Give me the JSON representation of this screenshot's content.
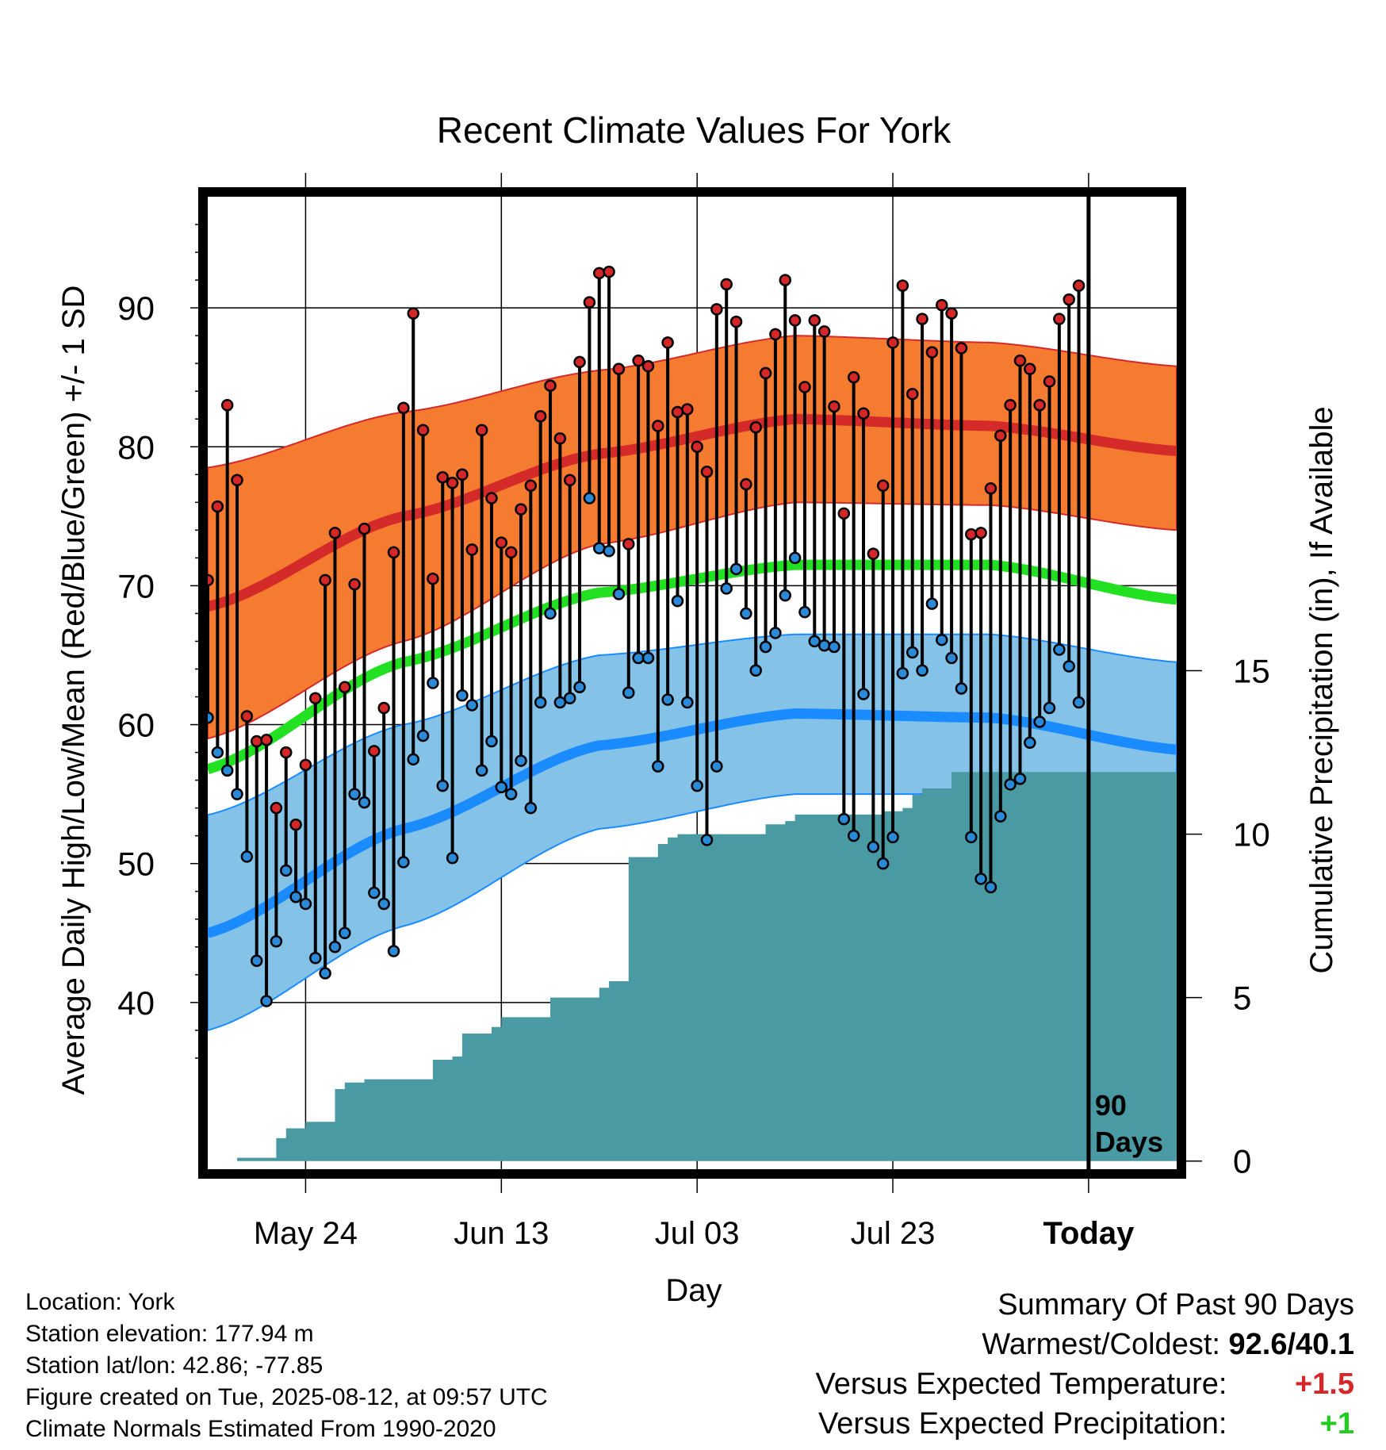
{
  "colors": {
    "high_band": "#f47b30",
    "high_mean": "#d42a2a",
    "low_band": "#85c2e8",
    "low_mean": "#1a8cff",
    "mean": "#22e022",
    "precip": "#4a9aa4",
    "high_dot": "#d62728",
    "low_dot": "#2b8ad8",
    "warm_cold_value": "#000000",
    "temp_anomaly": "#d62728",
    "precip_anomaly": "#22cc22"
  },
  "chart_data": {
    "type": "line",
    "title": "Recent Climate Values For York",
    "xlabel": "Day",
    "ylabel": "Average Daily High/Low/Mean (Red/Blue/Green) +/- 1 SD",
    "y2label": "Cumulative Precipitation (in), If Available",
    "xlim": [
      "2025-05-14",
      "2025-08-21"
    ],
    "ylim": [
      28,
      98
    ],
    "y2lim": [
      -0.25,
      29.5
    ],
    "y_ticks": [
      40,
      50,
      60,
      70,
      80,
      90
    ],
    "y2_ticks": [
      0,
      5,
      10,
      15
    ],
    "x_ticks": [
      {
        "date": "2025-05-24",
        "label": "May 24"
      },
      {
        "date": "2025-06-13",
        "label": "Jun 13"
      },
      {
        "date": "2025-07-03",
        "label": "Jul 03"
      },
      {
        "date": "2025-07-23",
        "label": "Jul 23"
      },
      {
        "date": "2025-08-12",
        "label": "Today"
      }
    ],
    "today": "2025-08-12",
    "today_label": [
      "90",
      "Days"
    ],
    "grid": true,
    "normals_dates": [
      "2025-05-14",
      "2025-06-03",
      "2025-06-23",
      "2025-07-13",
      "2025-08-02",
      "2025-08-21"
    ],
    "normal_high_mean": [
      68.5,
      75.0,
      79.5,
      82.0,
      81.5,
      79.7
    ],
    "normal_high_upper": [
      78.5,
      82.5,
      85.5,
      88.0,
      87.5,
      85.8
    ],
    "normal_high_lower": [
      59.0,
      66.0,
      73.0,
      76.0,
      75.8,
      74.0
    ],
    "normal_mean": [
      56.8,
      64.5,
      69.5,
      71.5,
      71.5,
      69.0
    ],
    "normal_low_mean": [
      45.0,
      52.5,
      58.5,
      60.8,
      60.5,
      58.2
    ],
    "normal_low_upper": [
      53.5,
      60.0,
      65.0,
      66.5,
      66.5,
      64.5
    ],
    "normal_low_lower": [
      38.0,
      45.5,
      52.5,
      55.0,
      55.0,
      52.5
    ],
    "series": [
      {
        "name": "High",
        "start": "2025-05-14",
        "values": [
          70.4,
          75.7,
          83.0,
          77.6,
          60.6,
          58.8,
          58.9,
          54.0,
          58.0,
          52.8,
          57.1,
          61.9,
          70.4,
          73.8,
          62.7,
          70.1,
          74.1,
          58.1,
          61.2,
          72.4,
          82.8,
          89.6,
          81.2,
          70.5,
          77.8,
          77.4,
          78.0,
          72.6,
          81.2,
          76.3,
          73.1,
          72.4,
          75.5,
          77.2,
          82.2,
          84.4,
          80.6,
          77.6,
          86.1,
          90.4,
          92.5,
          92.6,
          85.6,
          73.0,
          86.2,
          85.8,
          81.5,
          87.5,
          82.5,
          82.7,
          80.0,
          78.2,
          89.9,
          91.7,
          89.0,
          77.3,
          81.4,
          85.3,
          88.1,
          92.0,
          89.1,
          84.3,
          89.1,
          88.3,
          82.9,
          75.2,
          85.0,
          82.4,
          72.3,
          77.2,
          87.5,
          91.6,
          83.8,
          89.2,
          86.8,
          90.2,
          89.6,
          87.1,
          73.7,
          73.8,
          77.0,
          80.8,
          83.0,
          86.2,
          85.6,
          83.0,
          84.7,
          89.2,
          90.6,
          91.6
        ]
      },
      {
        "name": "Low",
        "start": "2025-05-14",
        "values": [
          60.5,
          58.0,
          56.7,
          55.0,
          50.5,
          43.0,
          40.1,
          44.4,
          49.5,
          47.6,
          47.1,
          43.2,
          42.1,
          44.0,
          45.0,
          55.0,
          54.4,
          47.9,
          47.1,
          43.7,
          50.1,
          57.5,
          59.2,
          63.0,
          55.6,
          50.4,
          62.1,
          61.4,
          56.7,
          58.8,
          55.5,
          55.0,
          57.4,
          54.0,
          61.6,
          68.0,
          61.6,
          61.9,
          62.7,
          76.3,
          72.7,
          72.5,
          69.4,
          62.3,
          64.8,
          64.8,
          57.0,
          61.8,
          68.9,
          61.6,
          55.6,
          51.7,
          57.0,
          69.8,
          71.2,
          68.0,
          63.9,
          65.6,
          66.6,
          69.3,
          72.0,
          68.1,
          66.0,
          65.7,
          65.6,
          53.2,
          52.0,
          62.2,
          51.2,
          50.0,
          51.9,
          63.7,
          65.2,
          63.9,
          68.7,
          66.1,
          64.8,
          62.6,
          51.9,
          48.9,
          48.3,
          53.4,
          55.7,
          56.1,
          58.7,
          60.2,
          61.2,
          65.4,
          64.2,
          61.6
        ]
      },
      {
        "name": "Cumulative Precipitation",
        "dates": [
          "2025-05-17",
          "2025-05-20",
          "2025-05-21",
          "2025-05-22",
          "2025-05-24",
          "2025-05-26",
          "2025-05-27",
          "2025-05-28",
          "2025-05-30",
          "2025-06-05",
          "2025-06-06",
          "2025-06-08",
          "2025-06-09",
          "2025-06-12",
          "2025-06-13",
          "2025-06-17",
          "2025-06-18",
          "2025-06-23",
          "2025-06-24",
          "2025-06-26",
          "2025-06-28",
          "2025-06-29",
          "2025-06-30",
          "2025-07-01",
          "2025-07-08",
          "2025-07-10",
          "2025-07-12",
          "2025-07-13",
          "2025-07-22",
          "2025-07-24",
          "2025-07-25",
          "2025-07-26",
          "2025-07-29",
          "2025-08-21"
        ],
        "values": [
          0.1,
          0.1,
          0.7,
          1.0,
          1.2,
          1.2,
          2.2,
          2.4,
          2.5,
          2.5,
          3.1,
          3.2,
          3.9,
          4.1,
          4.4,
          4.4,
          5.0,
          5.3,
          5.5,
          9.3,
          9.3,
          9.7,
          9.9,
          10.0,
          10.0,
          10.3,
          10.4,
          10.6,
          10.7,
          10.8,
          11.2,
          11.4,
          11.9,
          11.9
        ]
      }
    ]
  },
  "info": {
    "location": "Location: York",
    "elevation": "Station elevation: 177.94 m",
    "latlon": "Station lat/lon: 42.86; -77.85",
    "created": "Figure created on Tue, 2025-08-12, at 09:57 UTC",
    "normals": "Climate Normals Estimated From 1990-2020"
  },
  "summary": {
    "title": "Summary Of Past 90 Days",
    "warm_cold_label": "Warmest/Coldest:",
    "warm_cold_value": "92.6/40.1",
    "temp_label": "Versus Expected Temperature:",
    "temp_value": "+1.5",
    "precip_label": "Versus Expected Precipitation:",
    "precip_value": "+1"
  }
}
